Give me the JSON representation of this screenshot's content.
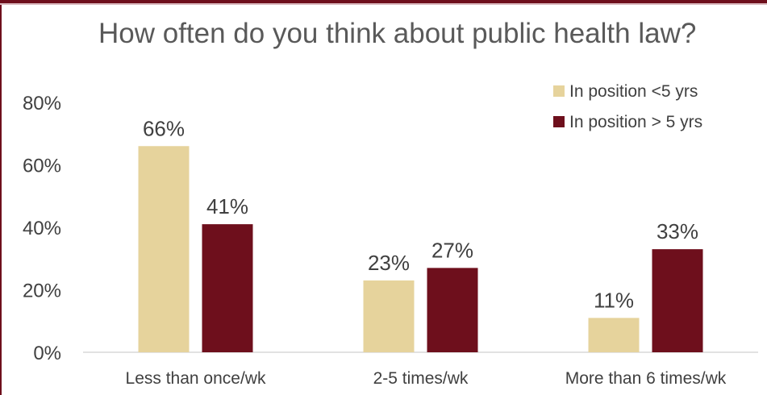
{
  "chart_data": {
    "type": "bar",
    "title": "How often do you think about public health law?",
    "categories": [
      "Less than once/wk",
      "2-5 times/wk",
      "More than 6 times/wk"
    ],
    "series": [
      {
        "name": "In position <5 yrs",
        "values": [
          66,
          23,
          11
        ],
        "labels": [
          "66%",
          "23%",
          "11%"
        ],
        "color": "#e6d39c"
      },
      {
        "name": "In position > 5 yrs",
        "values": [
          41,
          27,
          33
        ],
        "labels": [
          "41%",
          "27%",
          "33%"
        ],
        "color": "#6e0f1c"
      }
    ],
    "ylim": [
      0,
      80
    ],
    "yticks": [
      0,
      20,
      40,
      60,
      80
    ],
    "ytick_labels": [
      "0%",
      "20%",
      "40%",
      "60%",
      "80%"
    ],
    "grid": false,
    "legend_position": "top-right",
    "xlabel": "",
    "ylabel": ""
  }
}
